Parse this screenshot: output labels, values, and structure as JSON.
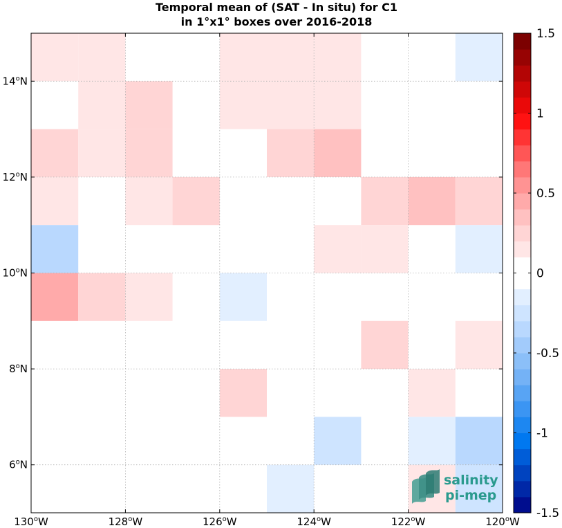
{
  "chart_data": {
    "type": "heatmap",
    "title_line1": "Temporal mean of (SAT - In situ) for C1",
    "title_line2": "in 1°x1° boxes over 2016-2018",
    "x_ticks": [
      {
        "value": -130,
        "label": "130°W"
      },
      {
        "value": -128,
        "label": "128°W"
      },
      {
        "value": -126,
        "label": "126°W"
      },
      {
        "value": -124,
        "label": "124°W"
      },
      {
        "value": -122,
        "label": "122°W"
      },
      {
        "value": -120,
        "label": "120°W"
      }
    ],
    "y_ticks": [
      {
        "value": 6,
        "label": "6°N"
      },
      {
        "value": 8,
        "label": "8°N"
      },
      {
        "value": 10,
        "label": "10°N"
      },
      {
        "value": 12,
        "label": "12°N"
      },
      {
        "value": 14,
        "label": "14°N"
      }
    ],
    "xlim": [
      -130,
      -120
    ],
    "ylim": [
      5,
      15
    ],
    "grid": true,
    "colorbar": {
      "vmin": -1.5,
      "vmax": 1.5,
      "n_levels": 30,
      "tick_values": [
        1.5,
        1,
        0.5,
        0,
        -0.5,
        -1,
        -1.5
      ],
      "tick_labels": [
        "1.5",
        "1",
        "0.5",
        "0",
        "-0.5",
        "-1",
        "-1.5"
      ]
    },
    "cells": [
      {
        "lon": -130,
        "lat": 14,
        "value": 0.15
      },
      {
        "lon": -129,
        "lat": 14,
        "value": 0.15
      },
      {
        "lon": -126,
        "lat": 14,
        "value": 0.15
      },
      {
        "lon": -125,
        "lat": 14,
        "value": 0.15
      },
      {
        "lon": -124,
        "lat": 14,
        "value": 0.15
      },
      {
        "lon": -121,
        "lat": 14,
        "value": -0.15
      },
      {
        "lon": -129,
        "lat": 13,
        "value": 0.15
      },
      {
        "lon": -128,
        "lat": 13,
        "value": 0.25
      },
      {
        "lon": -126,
        "lat": 13,
        "value": 0.15
      },
      {
        "lon": -125,
        "lat": 13,
        "value": 0.15
      },
      {
        "lon": -124,
        "lat": 13,
        "value": 0.15
      },
      {
        "lon": -130,
        "lat": 12,
        "value": 0.25
      },
      {
        "lon": -129,
        "lat": 12,
        "value": 0.15
      },
      {
        "lon": -128,
        "lat": 12,
        "value": 0.25
      },
      {
        "lon": -125,
        "lat": 12,
        "value": 0.25
      },
      {
        "lon": -124,
        "lat": 12,
        "value": 0.35
      },
      {
        "lon": -130,
        "lat": 11,
        "value": 0.15
      },
      {
        "lon": -128,
        "lat": 11,
        "value": 0.15
      },
      {
        "lon": -127,
        "lat": 11,
        "value": 0.25
      },
      {
        "lon": -123,
        "lat": 11,
        "value": 0.25
      },
      {
        "lon": -122,
        "lat": 11,
        "value": 0.35
      },
      {
        "lon": -121,
        "lat": 11,
        "value": 0.25
      },
      {
        "lon": -130,
        "lat": 10,
        "value": -0.3
      },
      {
        "lon": -124,
        "lat": 10,
        "value": 0.15
      },
      {
        "lon": -123,
        "lat": 10,
        "value": 0.15
      },
      {
        "lon": -121,
        "lat": 10,
        "value": -0.15
      },
      {
        "lon": -130,
        "lat": 9,
        "value": 0.45
      },
      {
        "lon": -129,
        "lat": 9,
        "value": 0.25
      },
      {
        "lon": -128,
        "lat": 9,
        "value": 0.15
      },
      {
        "lon": -126,
        "lat": 9,
        "value": -0.15
      },
      {
        "lon": -123,
        "lat": 8,
        "value": 0.25
      },
      {
        "lon": -121,
        "lat": 8,
        "value": 0.15
      },
      {
        "lon": -126,
        "lat": 7,
        "value": 0.25
      },
      {
        "lon": -122,
        "lat": 7,
        "value": 0.15
      },
      {
        "lon": -124,
        "lat": 6,
        "value": -0.25
      },
      {
        "lon": -122,
        "lat": 6,
        "value": -0.15
      },
      {
        "lon": -121,
        "lat": 6,
        "value": -0.3
      },
      {
        "lon": -125,
        "lat": 5,
        "value": -0.15
      },
      {
        "lon": -122,
        "lat": 5,
        "value": 0.15
      },
      {
        "lon": -121,
        "lat": 5,
        "value": -0.25
      }
    ]
  },
  "logo": {
    "line1": "salinity",
    "line2": "pi-mep"
  }
}
